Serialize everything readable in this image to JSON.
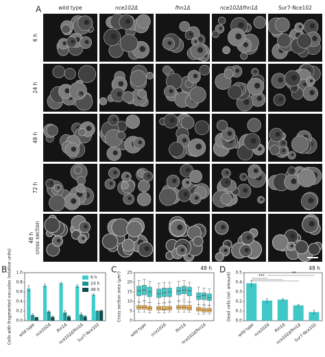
{
  "panel_a": {
    "label": "A",
    "columns": [
      "wild type",
      "nce102Δ",
      "fhn1Δ",
      "nce102Δfhn1Δ",
      "Sur7-Nce102"
    ],
    "rows": [
      "6 h",
      "24 h",
      "48 h",
      "72 h"
    ],
    "cross_section_row": [
      "48 h",
      "cross section"
    ]
  },
  "chart_data": [
    {
      "type": "bar",
      "panel": "B",
      "ylabel": "Cells with fragmented vacuoles (relative units)",
      "categories": [
        "wild type",
        "nce102Δ",
        "fhn1Δ",
        "nce102Δfhn1Δ",
        "Sur7-Nce102"
      ],
      "series": [
        {
          "name": "6 h",
          "color": "#40cccc",
          "values": [
            0.67,
            0.73,
            0.78,
            0.72,
            0.54
          ],
          "errors": [
            0.06,
            0.03,
            0.02,
            0.03,
            0.02
          ]
        },
        {
          "name": "24 h",
          "color": "#1e9494",
          "values": [
            0.12,
            0.19,
            0.17,
            0.13,
            0.2
          ],
          "errors": [
            0.03,
            0.02,
            0.04,
            0.03,
            0.01
          ]
        },
        {
          "name": "48 h",
          "color": "#0b4d4d",
          "values": [
            0.07,
            0.08,
            0.09,
            0.09,
            0.21
          ],
          "errors": [
            0.01,
            0.02,
            0.02,
            0.02,
            0.01
          ]
        }
      ],
      "ylim": [
        0,
        1
      ],
      "yticks": [
        {
          "value": 0,
          "label": "0.0"
        },
        0.2,
        0.4,
        0.6,
        0.8,
        {
          "value": 1,
          "label": "1.0"
        }
      ],
      "legend": "upper right"
    },
    {
      "type": "box",
      "panel": "C",
      "annotation": "48 h",
      "ylabel": "Cross section area (μm²)",
      "categories": [
        "wild type",
        "nce102Δ",
        "fhn1Δ",
        "nce102Δfhn1Δ"
      ],
      "series": [
        {
          "color": "#40c8c8",
          "boxes": [
            [
              [
                10,
                13,
                15.5,
                18,
                21
              ],
              [
                10.5,
                13.5,
                16,
                18.5,
                21.5
              ],
              [
                9.5,
                12.5,
                15,
                17.5,
                20.5
              ]
            ],
            [
              [
                9,
                12,
                14,
                16.5,
                19.5
              ],
              [
                9.5,
                12.5,
                14.5,
                17,
                20
              ],
              [
                10,
                12.5,
                15,
                17,
                20
              ]
            ],
            [
              [
                10.5,
                13.5,
                15.5,
                17.5,
                20.5
              ],
              [
                11,
                14,
                16,
                18,
                21
              ],
              [
                10,
                13,
                15.5,
                17.5,
                20
              ]
            ],
            [
              [
                8.5,
                11,
                12.5,
                14.5,
                17.5
              ],
              [
                8.5,
                11,
                13,
                14.5,
                17
              ],
              [
                8,
                10.5,
                12,
                14,
                16.5
              ]
            ]
          ]
        },
        {
          "color": "#f0b050",
          "boxes": [
            [
              [
                4.5,
                6,
                7,
                8,
                9.5
              ],
              [
                4.5,
                6,
                7,
                8,
                10
              ],
              [
                4,
                5.5,
                6.5,
                7.5,
                9.5
              ]
            ],
            [
              [
                4,
                5.5,
                6.5,
                7.5,
                9
              ],
              [
                4,
                5.5,
                6,
                7.5,
                9
              ],
              [
                4.5,
                5.5,
                6.5,
                7.5,
                9.5
              ]
            ],
            [
              [
                4.5,
                6,
                7,
                8,
                10
              ],
              [
                4.5,
                6,
                7,
                8,
                10
              ],
              [
                4.5,
                5.5,
                6.5,
                8,
                9.5
              ]
            ],
            [
              [
                3.5,
                5,
                6,
                7,
                8.5
              ],
              [
                3.5,
                4.5,
                5.5,
                6.5,
                8
              ],
              [
                3.5,
                4.5,
                5.5,
                6.5,
                8
              ]
            ]
          ]
        }
      ],
      "ylim": [
        0,
        25
      ],
      "yticks": [
        0,
        5,
        10,
        15,
        20,
        25
      ]
    },
    {
      "type": "bar",
      "panel": "D",
      "annotation": "48 h",
      "ylabel": "Dead cells (rel. amount)",
      "categories": [
        "wild type",
        "nce102Δ",
        "fhn1Δ",
        "nce102Δfhn1Δ",
        "Sur7-Nce102"
      ],
      "series": [
        {
          "color": "#40c8c8",
          "values": [
            0.39,
            0.21,
            0.22,
            0.16,
            0.09
          ],
          "errors": [
            0.03,
            0.02,
            0.01,
            0.01,
            0.02
          ]
        }
      ],
      "ylim": [
        0,
        0.5
      ],
      "yticks": [
        {
          "value": 0,
          "label": "0.0"
        },
        0.1,
        0.2,
        0.3,
        0.4,
        0.5
      ],
      "significance": [
        "***",
        "**"
      ]
    }
  ]
}
